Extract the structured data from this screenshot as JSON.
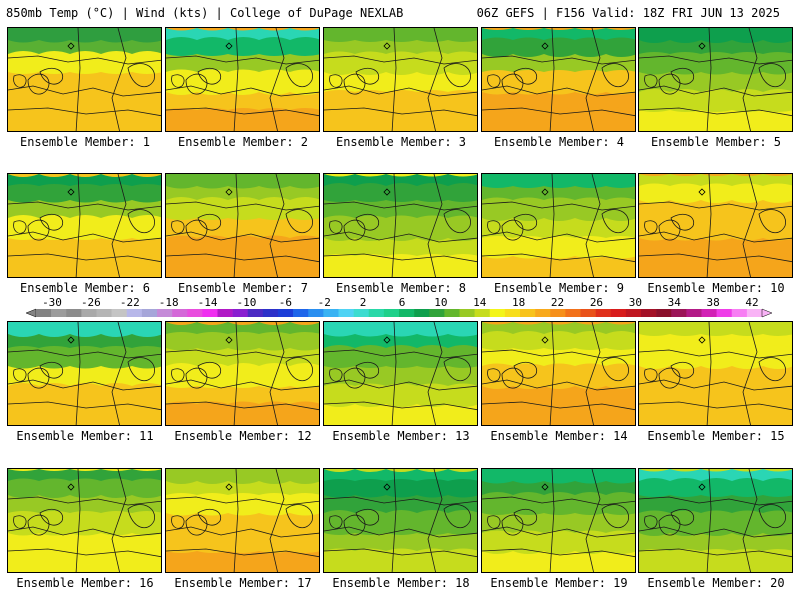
{
  "header": {
    "left": "850mb Temp (°C) | Wind (kts) | College of DuPage NEXLAB",
    "right": "06Z GEFS | F156 Valid: 18Z FRI JUN 13 2025"
  },
  "colorbar": {
    "tick_labels": [
      "-30",
      "-26",
      "-22",
      "-18",
      "-14",
      "-10",
      "-6",
      "-2",
      "2",
      "6",
      "10",
      "14",
      "18",
      "22",
      "26",
      "30",
      "34",
      "38",
      "42"
    ],
    "colors": [
      "#838383",
      "#9c9c9c",
      "#8c8c8c",
      "#a9a9a9",
      "#b5b5b5",
      "#c4c4c4",
      "#b7b7e9",
      "#a6a6d9",
      "#c58bd8",
      "#d468d8",
      "#e94dde",
      "#f02ef0",
      "#b119c6",
      "#8a1fd0",
      "#4c2ac3",
      "#2d31c9",
      "#1d3ed8",
      "#1f66ea",
      "#2a8ff0",
      "#39b3f3",
      "#4fd3f4",
      "#3cdcd0",
      "#29d8a8",
      "#1ed08a",
      "#12b868",
      "#0e9f4d",
      "#31a33a",
      "#63b62d",
      "#98c924",
      "#c6dc1d",
      "#f3f51a",
      "#f7de1b",
      "#f8c31b",
      "#f8a91b",
      "#f68f1a",
      "#f2711a",
      "#e9521a",
      "#e0301b",
      "#d81c1c",
      "#c01621",
      "#a31127",
      "#8a0f2b",
      "#9b1557",
      "#b21a86",
      "#d221b5",
      "#ef3ee8",
      "#f77ef3",
      "#f9b3f6"
    ]
  },
  "panels": [
    {
      "label": "Ensemble Member: 1",
      "colors": [
        "#2f9e3f",
        "#59b033",
        "#f1ed1b",
        "#f6c41c",
        "#f6c41c",
        "#f6c41c",
        "#f6c41c"
      ]
    },
    {
      "label": "Ensemble Member: 2",
      "colors": [
        "#2ad6b4",
        "#12b868",
        "#98c924",
        "#f1ed1b",
        "#f6c41c",
        "#f5a51b",
        "#f5a51b"
      ]
    },
    {
      "label": "Ensemble Member: 3",
      "colors": [
        "#63b62d",
        "#98c924",
        "#c6dc1d",
        "#f1ed1b",
        "#f6c41c",
        "#f6c41c",
        "#f6c41c"
      ]
    },
    {
      "label": "Ensemble Member: 4",
      "colors": [
        "#12b868",
        "#31a33a",
        "#98c924",
        "#f6c41c",
        "#f5a51b",
        "#f5a51b",
        "#f5a51b"
      ]
    },
    {
      "label": "Ensemble Member: 5",
      "colors": [
        "#0e9f4d",
        "#31a33a",
        "#63b62d",
        "#98c924",
        "#c6dc1d",
        "#f1ed1b",
        "#f1ed1b"
      ]
    },
    {
      "label": "Ensemble Member: 6",
      "colors": [
        "#0e9f4d",
        "#31a33a",
        "#98c924",
        "#f1ed1b",
        "#f6c41c",
        "#f6c41c",
        "#f6c41c"
      ]
    },
    {
      "label": "Ensemble Member: 7",
      "colors": [
        "#63b62d",
        "#98c924",
        "#c6dc1d",
        "#f6c41c",
        "#f5a51b",
        "#f5a51b",
        "#f5a51b"
      ]
    },
    {
      "label": "Ensemble Member: 8",
      "colors": [
        "#0e9f4d",
        "#31a33a",
        "#63b62d",
        "#98c924",
        "#c6dc1d",
        "#f1ed1b",
        "#f1ed1b"
      ]
    },
    {
      "label": "Ensemble Member: 9",
      "colors": [
        "#12b868",
        "#63b62d",
        "#98c924",
        "#c6dc1d",
        "#f1ed1b",
        "#f6c41c",
        "#f6c41c"
      ]
    },
    {
      "label": "Ensemble Member: 10",
      "colors": [
        "#c6dc1d",
        "#f1ed1b",
        "#f6c41c",
        "#f6c41c",
        "#f5a51b",
        "#f5a51b",
        "#f5a51b"
      ]
    },
    {
      "label": "Ensemble Member: 11",
      "colors": [
        "#2ad6b4",
        "#31a33a",
        "#63b62d",
        "#f1ed1b",
        "#f6c41c",
        "#f6c41c",
        "#f6c41c"
      ]
    },
    {
      "label": "Ensemble Member: 12",
      "colors": [
        "#63b62d",
        "#98c924",
        "#c6dc1d",
        "#f1ed1b",
        "#f6c41c",
        "#f5a51b",
        "#f5a51b"
      ]
    },
    {
      "label": "Ensemble Member: 13",
      "colors": [
        "#2ad6b4",
        "#12b868",
        "#63b62d",
        "#98c924",
        "#c6dc1d",
        "#f1ed1b",
        "#f1ed1b"
      ]
    },
    {
      "label": "Ensemble Member: 14",
      "colors": [
        "#98c924",
        "#c6dc1d",
        "#f1ed1b",
        "#f6c41c",
        "#f5a51b",
        "#f5a51b",
        "#f5a51b"
      ]
    },
    {
      "label": "Ensemble Member: 15",
      "colors": [
        "#c6dc1d",
        "#f1ed1b",
        "#f1ed1b",
        "#f6c41c",
        "#f6c41c",
        "#f6c41c",
        "#f6c41c"
      ]
    },
    {
      "label": "Ensemble Member: 16",
      "colors": [
        "#31a33a",
        "#63b62d",
        "#98c924",
        "#c6dc1d",
        "#f1ed1b",
        "#f1ed1b",
        "#f1ed1b"
      ]
    },
    {
      "label": "Ensemble Member: 17",
      "colors": [
        "#98c924",
        "#c6dc1d",
        "#f1ed1b",
        "#f6c41c",
        "#f6c41c",
        "#f5a51b",
        "#f5a51b"
      ]
    },
    {
      "label": "Ensemble Member: 18",
      "colors": [
        "#12b868",
        "#0e9f4d",
        "#31a33a",
        "#63b62d",
        "#98c924",
        "#c6dc1d",
        "#c6dc1d"
      ]
    },
    {
      "label": "Ensemble Member: 19",
      "colors": [
        "#12b868",
        "#31a33a",
        "#63b62d",
        "#98c924",
        "#c6dc1d",
        "#f1ed1b",
        "#f1ed1b"
      ]
    },
    {
      "label": "Ensemble Member: 20",
      "colors": [
        "#2ad6b4",
        "#12b868",
        "#31a33a",
        "#63b62d",
        "#98c924",
        "#c6dc1d",
        "#c6dc1d"
      ]
    }
  ]
}
